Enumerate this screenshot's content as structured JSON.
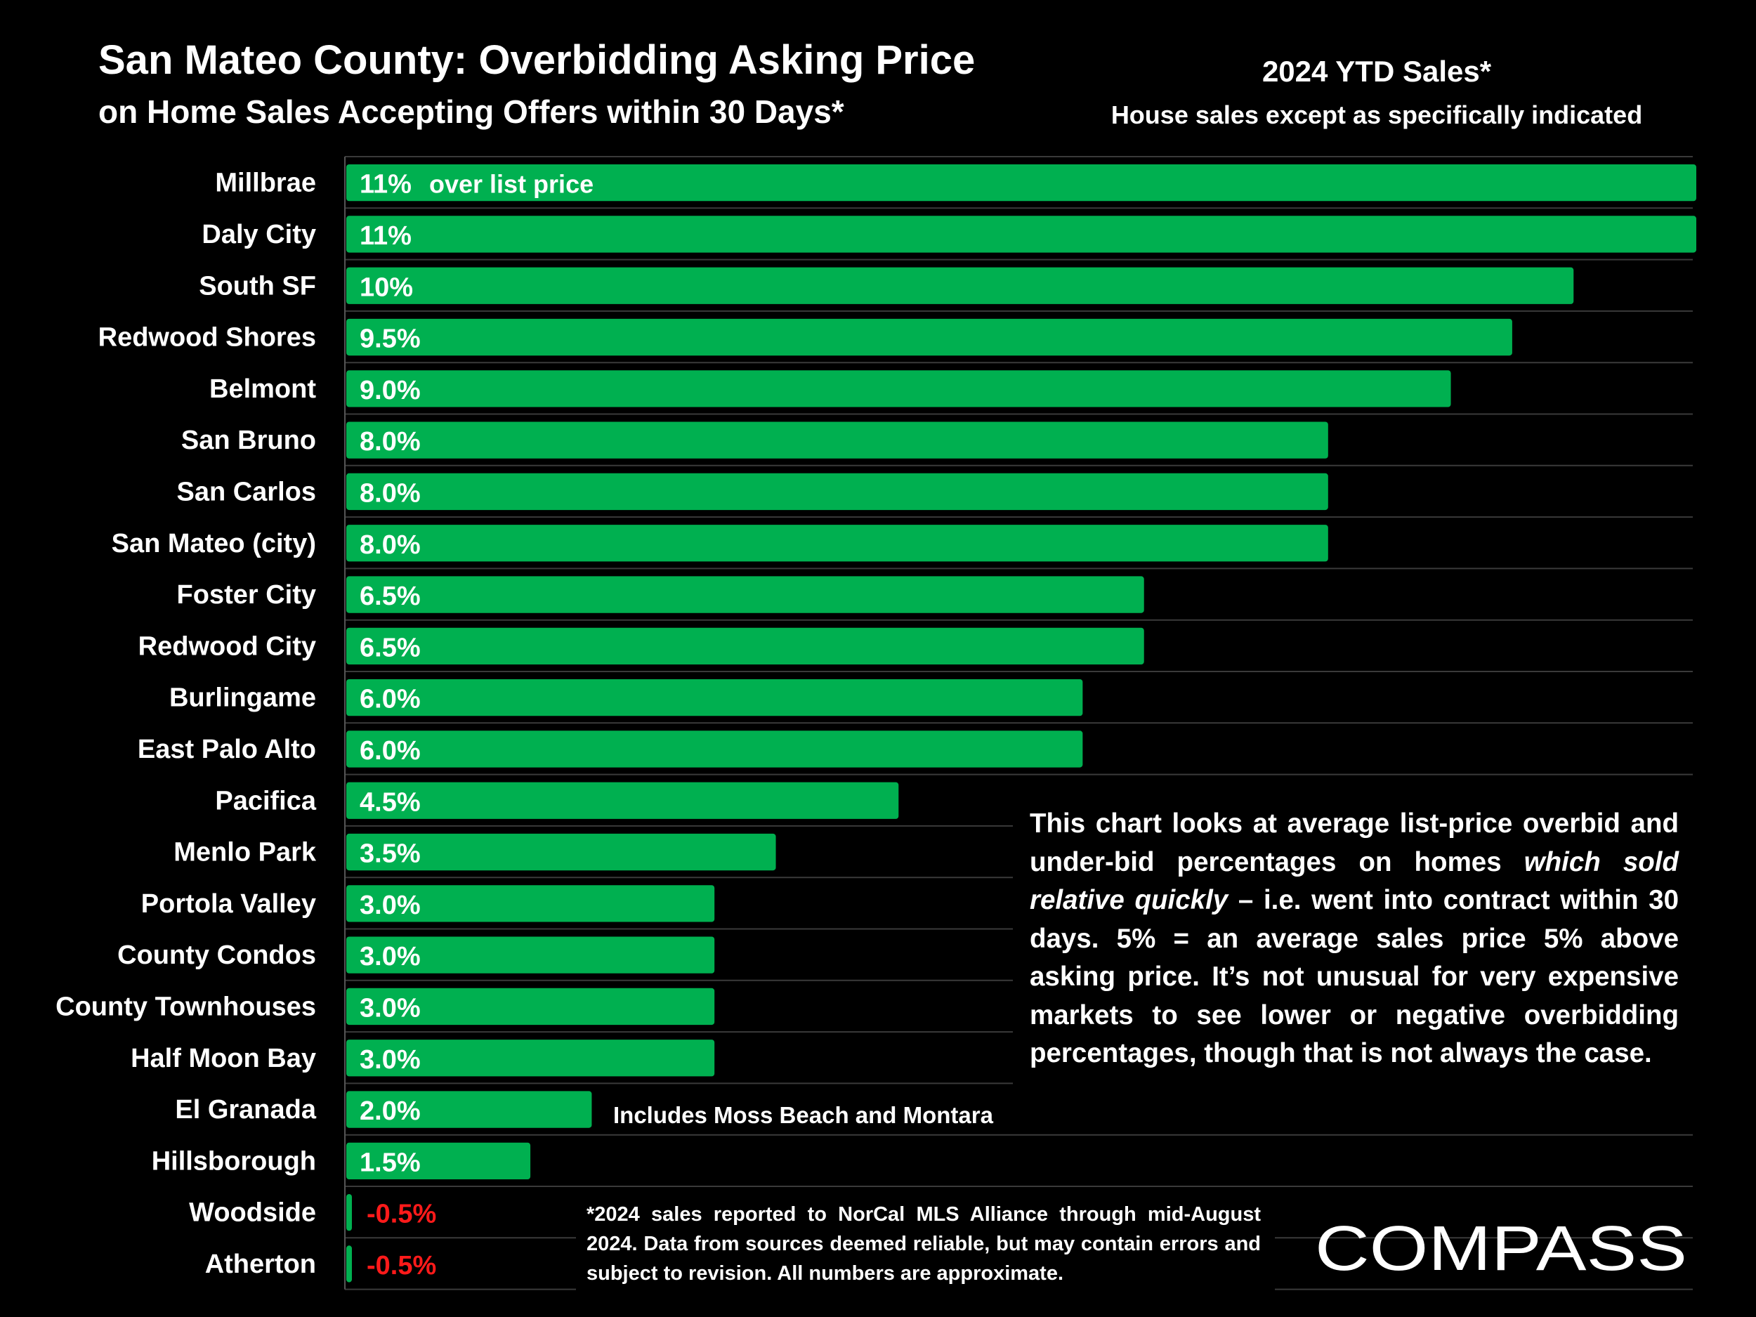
{
  "header": {
    "title": "San Mateo County: Overbidding Asking Price",
    "subtitle": "on Home Sales Accepting Offers within 30 Days*",
    "ytd_label": "2024 YTD Sales*",
    "ytd_sublabel": "House sales except as specifically indicated"
  },
  "chart_data": {
    "type": "bar",
    "orientation": "horizontal",
    "categories": [
      "Millbrae",
      "Daly City",
      "South SF",
      "Redwood Shores",
      "Belmont",
      "San Bruno",
      "San Carlos",
      "San Mateo (city)",
      "Foster City",
      "Redwood City",
      "Burlingame",
      "East Palo Alto",
      "Pacifica",
      "Menlo Park",
      "Portola Valley",
      "County Condos",
      "County Townhouses",
      "Half Moon Bay",
      "El Granada",
      "Hillsborough",
      "Woodside",
      "Atherton"
    ],
    "values": [
      11,
      11,
      10,
      9.5,
      9.0,
      8.0,
      8.0,
      8.0,
      6.5,
      6.5,
      6.0,
      6.0,
      4.5,
      3.5,
      3.0,
      3.0,
      3.0,
      3.0,
      2.0,
      1.5,
      -0.5,
      -0.5
    ],
    "value_labels": [
      "11%",
      "11%",
      "10%",
      "9.5%",
      "9.0%",
      "8.0%",
      "8.0%",
      "8.0%",
      "6.5%",
      "6.5%",
      "6.0%",
      "6.0%",
      "4.5%",
      "3.5%",
      "3.0%",
      "3.0%",
      "3.0%",
      "3.0%",
      "2.0%",
      "1.5%",
      "-0.5%",
      "-0.5%"
    ],
    "first_bar_suffix": "over list price",
    "annotations": [
      {
        "category": "El Granada",
        "text": "Includes Moss Beach and Montara"
      }
    ],
    "colors": {
      "positive_bar": "#00B050",
      "negative_label": "#FF1A1A",
      "grid": "#3a3a3a"
    }
  },
  "note": {
    "part1": "This chart looks at average list-price overbid and under-bid percentages on homes ",
    "italic": "which sold relative quickly",
    "part2": " – i.e. went into contract within 30 days. 5% = an average sales price 5% above asking price. It’s not unusual for very expensive markets to see lower or negative overbidding percentages, though that is not always the case."
  },
  "footnote": "*2024 sales reported to NorCal MLS Alliance through mid-August 2024. Data from sources deemed reliable, but may contain errors and subject to revision. All numbers are approximate.",
  "logo": {
    "text": "COMPASS"
  }
}
